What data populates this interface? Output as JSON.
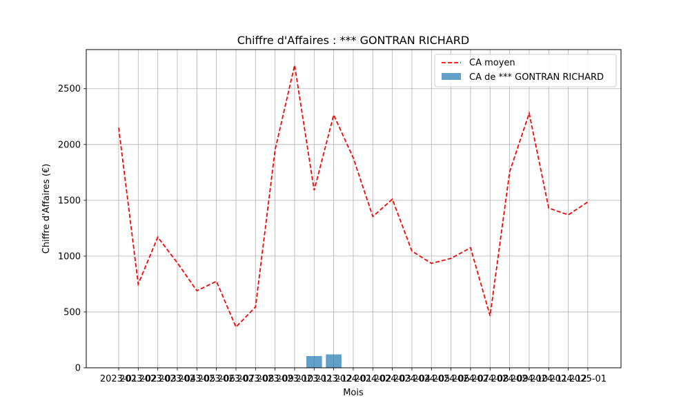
{
  "chart_data": {
    "type": "bar",
    "title": "Chiffre d'Affaires : *** GONTRAN RICHARD",
    "xlabel": "Mois",
    "ylabel": "Chiffre d'Affaires (€)",
    "ylim": [
      0,
      2850
    ],
    "yticks": [
      0,
      500,
      1000,
      1500,
      2000,
      2500
    ],
    "grid": true,
    "legend_position": "top-right",
    "categories": [
      "2023-01",
      "2023-02",
      "2023-03",
      "2023-04",
      "2023-05",
      "2023-06",
      "2023-07",
      "2023-08",
      "2023-09",
      "2023-10",
      "2023-11",
      "2023-12",
      "2024-01",
      "2024-02",
      "2024-03",
      "2024-04",
      "2024-05",
      "2024-06",
      "2024-07",
      "2024-08",
      "2024-09",
      "2024-10",
      "2024-11",
      "2024-12",
      "2025-01"
    ],
    "series": [
      {
        "name": "CA moyen",
        "kind": "line",
        "style": "dashed",
        "color": "#ff0000",
        "values": [
          2150,
          750,
          1170,
          940,
          690,
          775,
          365,
          545,
          1950,
          2710,
          1590,
          2265,
          1880,
          1355,
          1510,
          1045,
          935,
          980,
          1075,
          465,
          1755,
          2280,
          1430,
          1370,
          1485
        ]
      },
      {
        "name": "CA de *** GONTRAN RICHARD",
        "kind": "bar",
        "color": "#1f77b4",
        "values": [
          null,
          null,
          null,
          null,
          null,
          null,
          null,
          null,
          null,
          null,
          105,
          120,
          null,
          null,
          null,
          null,
          null,
          null,
          null,
          null,
          null,
          null,
          null,
          null,
          null
        ]
      }
    ]
  }
}
